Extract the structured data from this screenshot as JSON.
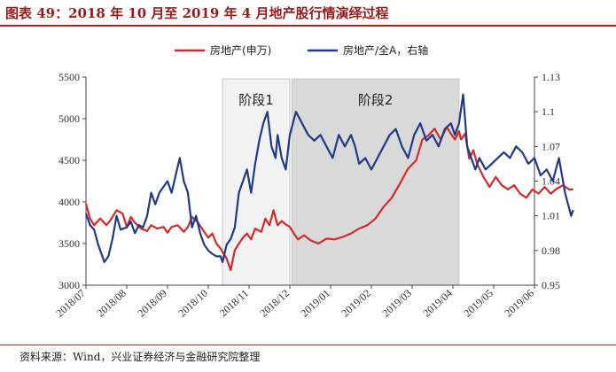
{
  "title": "图表 49：2018 年 10 月至 2019 年 4 月地产股行情演绎过程",
  "source": "资料来源：Wind，兴业证券经济与金融研究院整理",
  "chart_data": {
    "type": "line",
    "x_ticks": [
      "2018/07",
      "2018/08",
      "2018/09",
      "2018/10",
      "2018/11",
      "2018/12",
      "2019/01",
      "2019/02",
      "2019/03",
      "2019/04",
      "2019/05",
      "2019/06"
    ],
    "xlim": [
      "2018/07",
      "2019/06"
    ],
    "ylim_left": [
      3000,
      5500
    ],
    "yticks_left": [
      3000,
      3500,
      4000,
      4500,
      5000,
      5500
    ],
    "ylim_right": [
      0.95,
      1.13
    ],
    "yticks_right": [
      "0.95",
      "0.98",
      "1.01",
      "1.04",
      "1.07",
      "1.1",
      "1.13"
    ],
    "legend_position": "top",
    "stages": [
      {
        "label": "阶段1",
        "start": 3.35,
        "end": 5.0,
        "color": "#f2f2f2"
      },
      {
        "label": "阶段2",
        "start": 5.05,
        "end": 9.15,
        "color": "#d9d9d9"
      }
    ],
    "series": [
      {
        "name": "房地产(申万)",
        "axis": "left",
        "color": "#d42a2a",
        "x": [
          0.0,
          0.1,
          0.2,
          0.35,
          0.5,
          0.6,
          0.75,
          0.9,
          1.0,
          1.1,
          1.2,
          1.35,
          1.5,
          1.6,
          1.75,
          1.9,
          2.0,
          2.1,
          2.25,
          2.4,
          2.5,
          2.6,
          2.75,
          2.9,
          3.0,
          3.1,
          3.2,
          3.3,
          3.35,
          3.45,
          3.55,
          3.65,
          3.75,
          3.85,
          3.95,
          4.05,
          4.15,
          4.3,
          4.4,
          4.5,
          4.6,
          4.7,
          4.8,
          4.9,
          5.0,
          5.1,
          5.2,
          5.35,
          5.5,
          5.7,
          5.9,
          6.1,
          6.3,
          6.5,
          6.7,
          6.9,
          7.1,
          7.3,
          7.5,
          7.7,
          7.9,
          8.1,
          8.25,
          8.4,
          8.55,
          8.7,
          8.85,
          8.95,
          9.05,
          9.15,
          9.2,
          9.3,
          9.4,
          9.5,
          9.6,
          9.75,
          9.9,
          10.05,
          10.2,
          10.35,
          10.5,
          10.65,
          10.8,
          10.95,
          11.1,
          11.25,
          11.4,
          11.55,
          11.7,
          11.85,
          11.95
        ],
        "values": [
          3980,
          3800,
          3720,
          3800,
          3720,
          3780,
          3900,
          3860,
          3700,
          3820,
          3750,
          3680,
          3650,
          3720,
          3680,
          3700,
          3630,
          3700,
          3720,
          3640,
          3700,
          3820,
          3750,
          3640,
          3570,
          3620,
          3500,
          3440,
          3400,
          3320,
          3180,
          3420,
          3500,
          3570,
          3620,
          3550,
          3680,
          3640,
          3800,
          3720,
          3900,
          3720,
          3770,
          3730,
          3700,
          3620,
          3550,
          3600,
          3540,
          3500,
          3560,
          3550,
          3580,
          3620,
          3680,
          3720,
          3800,
          3940,
          4050,
          4220,
          4400,
          4500,
          4750,
          4800,
          4880,
          4750,
          4900,
          4820,
          4750,
          4850,
          4750,
          4820,
          4520,
          4620,
          4450,
          4300,
          4180,
          4300,
          4200,
          4150,
          4200,
          4100,
          4050,
          4150,
          4100,
          4180,
          4100,
          4160,
          4200,
          4150,
          4150
        ]
      },
      {
        "name": "房地产/全A，右轴",
        "axis": "right",
        "color": "#1f3a8a",
        "x": [
          0.0,
          0.1,
          0.2,
          0.3,
          0.45,
          0.55,
          0.65,
          0.75,
          0.85,
          1.0,
          1.1,
          1.2,
          1.3,
          1.4,
          1.5,
          1.6,
          1.7,
          1.8,
          1.9,
          2.0,
          2.1,
          2.2,
          2.3,
          2.4,
          2.5,
          2.6,
          2.7,
          2.8,
          2.9,
          3.0,
          3.1,
          3.2,
          3.3,
          3.35,
          3.45,
          3.55,
          3.65,
          3.75,
          3.85,
          3.95,
          4.05,
          4.15,
          4.25,
          4.35,
          4.45,
          4.55,
          4.65,
          4.7,
          4.8,
          4.9,
          5.0,
          5.15,
          5.3,
          5.45,
          5.6,
          5.75,
          5.9,
          6.05,
          6.2,
          6.35,
          6.5,
          6.6,
          6.7,
          6.85,
          7.0,
          7.15,
          7.3,
          7.45,
          7.6,
          7.75,
          7.9,
          8.05,
          8.2,
          8.35,
          8.5,
          8.65,
          8.8,
          8.95,
          9.05,
          9.15,
          9.25,
          9.35,
          9.45,
          9.55,
          9.65,
          9.8,
          9.95,
          10.1,
          10.25,
          10.4,
          10.55,
          10.7,
          10.85,
          11.0,
          11.15,
          11.3,
          11.45,
          11.6,
          11.75,
          11.9,
          11.95
        ],
        "values": [
          1.012,
          1.002,
          0.998,
          0.985,
          0.97,
          0.975,
          0.99,
          1.01,
          0.998,
          1.0,
          1.005,
          0.995,
          1.002,
          1.0,
          1.01,
          1.03,
          1.02,
          1.03,
          1.035,
          1.04,
          1.03,
          1.045,
          1.06,
          1.04,
          1.03,
          1.0,
          1.01,
          0.995,
          0.985,
          0.98,
          0.977,
          0.975,
          0.975,
          0.97,
          0.985,
          0.99,
          1.0,
          1.03,
          1.04,
          1.05,
          1.03,
          1.055,
          1.075,
          1.09,
          1.1,
          1.07,
          1.06,
          1.08,
          1.06,
          1.05,
          1.08,
          1.1,
          1.09,
          1.08,
          1.075,
          1.08,
          1.07,
          1.06,
          1.08,
          1.07,
          1.08,
          1.07,
          1.055,
          1.06,
          1.05,
          1.06,
          1.07,
          1.08,
          1.085,
          1.07,
          1.06,
          1.08,
          1.09,
          1.075,
          1.08,
          1.07,
          1.085,
          1.09,
          1.08,
          1.09,
          1.115,
          1.07,
          1.06,
          1.05,
          1.06,
          1.05,
          1.055,
          1.06,
          1.065,
          1.06,
          1.07,
          1.065,
          1.055,
          1.06,
          1.045,
          1.05,
          1.04,
          1.06,
          1.03,
          1.01,
          1.015
        ]
      }
    ]
  }
}
